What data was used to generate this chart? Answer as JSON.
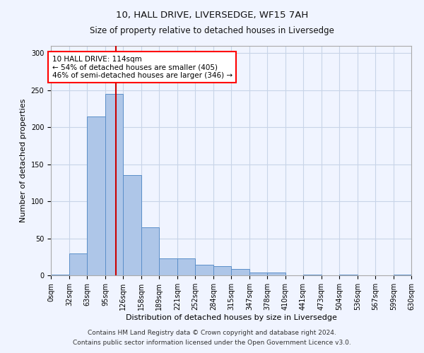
{
  "title1": "10, HALL DRIVE, LIVERSEDGE, WF15 7AH",
  "title2": "Size of property relative to detached houses in Liversedge",
  "xlabel": "Distribution of detached houses by size in Liversedge",
  "ylabel": "Number of detached properties",
  "footnote1": "Contains HM Land Registry data © Crown copyright and database right 2024.",
  "footnote2": "Contains public sector information licensed under the Open Government Licence v3.0.",
  "property_size": 114,
  "annotation_line1": "10 HALL DRIVE: 114sqm",
  "annotation_line2": "← 54% of detached houses are smaller (405)",
  "annotation_line3": "46% of semi-detached houses are larger (346) →",
  "bar_color": "#aec6e8",
  "bar_edge_color": "#5b8fc9",
  "marker_color": "#cc0000",
  "bin_edges": [
    0,
    32,
    63,
    95,
    126,
    158,
    189,
    221,
    252,
    284,
    315,
    347,
    378,
    410,
    441,
    473,
    504,
    536,
    567,
    599,
    630
  ],
  "bar_heights": [
    1,
    30,
    215,
    245,
    135,
    65,
    23,
    23,
    14,
    12,
    9,
    4,
    4,
    0,
    1,
    0,
    1,
    0,
    0,
    1
  ],
  "ylim": [
    0,
    310
  ],
  "yticks": [
    0,
    50,
    100,
    150,
    200,
    250,
    300
  ],
  "background_color": "#f0f4ff",
  "grid_color": "#c8d4e8",
  "annotation_fontsize": 7.5,
  "title1_fontsize": 9.5,
  "title2_fontsize": 8.5,
  "axis_label_fontsize": 8,
  "tick_fontsize": 7,
  "footnote_fontsize": 6.5
}
